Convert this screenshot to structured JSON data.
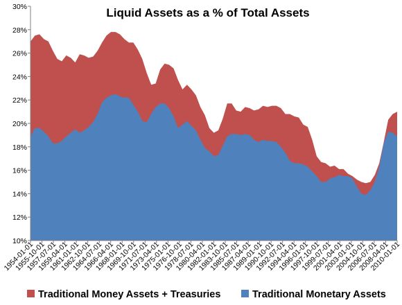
{
  "chart_data": {
    "type": "area",
    "title": "Liquid Assets as a % of Total Assets",
    "xlabel": "",
    "ylabel": "",
    "ylim": [
      10,
      30
    ],
    "yticks": [
      "10%",
      "12%",
      "14%",
      "16%",
      "18%",
      "20%",
      "22%",
      "24%",
      "26%",
      "28%",
      "30%"
    ],
    "x_tick_labels": [
      "1954-01-01",
      "1955-10-01",
      "1957-07-01",
      "1959-04-01",
      "1961-01-01",
      "1962-10-01",
      "1964-07-01",
      "1966-04-01",
      "1968-01-01",
      "1969-10-01",
      "1971-07-01",
      "1973-04-01",
      "1975-01-01",
      "1976-10-01",
      "1978-07-01",
      "1980-04-01",
      "1982-01-01",
      "1983-10-01",
      "1985-07-01",
      "1987-04-01",
      "1989-01-01",
      "1990-10-01",
      "1992-07-01",
      "1994-04-01",
      "1996-01-01",
      "1997-10-01",
      "1999-07-01",
      "2001-04-01",
      "2003-01-01",
      "2004-10-01",
      "2006-07-01",
      "2008-04-01",
      "2010-01-01"
    ],
    "legend_position": "bottom",
    "grid": false,
    "colors": {
      "total": "#C0504D",
      "monetary": "#4F81BD"
    },
    "series": [
      {
        "name": "Traditional Money Assets + Treasuries",
        "values": [
          27.0,
          27.5,
          27.6,
          27.2,
          27.0,
          26.2,
          25.5,
          25.3,
          25.8,
          25.6,
          25.2,
          25.9,
          25.8,
          25.6,
          25.7,
          26.2,
          26.9,
          27.5,
          27.8,
          27.8,
          27.6,
          27.2,
          26.9,
          26.9,
          26.3,
          25.5,
          24.3,
          23.3,
          23.4,
          24.6,
          25.1,
          25.0,
          24.7,
          23.7,
          22.9,
          23.3,
          22.9,
          22.4,
          21.4,
          20.7,
          19.6,
          19.2,
          19.4,
          20.4,
          21.7,
          21.7,
          21.1,
          21.0,
          21.4,
          21.3,
          21.1,
          21.2,
          21.5,
          21.4,
          21.5,
          21.5,
          21.3,
          20.8,
          20.8,
          20.6,
          20.5,
          19.9,
          19.7,
          18.6,
          17.2,
          16.7,
          16.6,
          16.3,
          16.4,
          16.1,
          16.1,
          15.7,
          15.5,
          15.2,
          15.0,
          14.9,
          15.0,
          15.6,
          16.6,
          18.4,
          20.3,
          20.8,
          21.0
        ]
      },
      {
        "name": "Traditional Monetary Assets",
        "values": [
          18.9,
          19.6,
          19.6,
          19.3,
          18.9,
          18.3,
          18.3,
          18.5,
          18.9,
          19.2,
          19.5,
          19.2,
          19.4,
          19.7,
          20.1,
          20.8,
          21.8,
          22.2,
          22.4,
          22.5,
          22.3,
          22.2,
          22.2,
          21.6,
          21.0,
          20.2,
          20.1,
          20.8,
          21.4,
          21.7,
          21.7,
          21.3,
          20.6,
          19.6,
          19.9,
          20.2,
          19.8,
          19.4,
          18.6,
          17.9,
          17.6,
          17.2,
          17.3,
          18.1,
          18.9,
          19.1,
          19.1,
          19.0,
          19.1,
          19.0,
          18.6,
          18.4,
          18.6,
          18.5,
          18.5,
          18.4,
          18.0,
          17.5,
          16.8,
          16.6,
          16.6,
          16.5,
          16.3,
          15.9,
          15.5,
          15.0,
          15.0,
          15.3,
          15.4,
          15.6,
          15.5,
          15.5,
          15.3,
          14.6,
          14.0,
          13.9,
          14.3,
          15.0,
          16.3,
          18.3,
          19.3,
          19.2,
          18.9
        ]
      }
    ]
  }
}
